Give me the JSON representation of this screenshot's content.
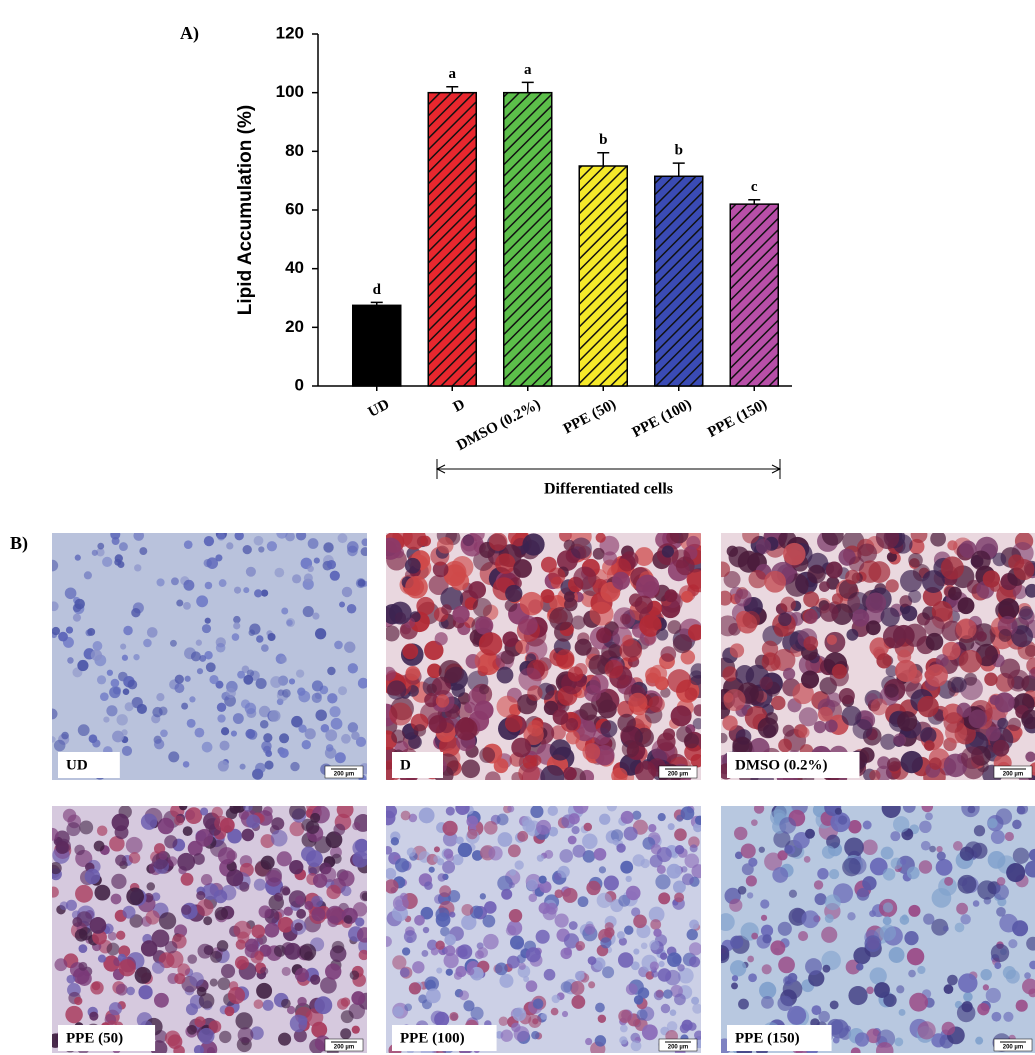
{
  "chart_data": {
    "type": "bar",
    "panel": "A)",
    "ylabel": "Lipid Accumulation (%)",
    "categories": [
      "UD",
      "D",
      "DMSO (0.2%)",
      "PPE (50)",
      "PPE (100)",
      "PPE (150)"
    ],
    "values": [
      27.5,
      100,
      100,
      75,
      71.5,
      62
    ],
    "errors": [
      1,
      2,
      3.5,
      4.5,
      4.5,
      1.5
    ],
    "significance_letters": [
      "d",
      "a",
      "a",
      "b",
      "b",
      "c"
    ],
    "colors": [
      "#000000",
      "#e8272e",
      "#5cbf4a",
      "#f5e92a",
      "#3a4bb5",
      "#b84fa8"
    ],
    "hatch": [
      false,
      true,
      true,
      true,
      true,
      true
    ],
    "ylim": [
      0,
      120
    ],
    "yticks": [
      0,
      20,
      40,
      60,
      80,
      100,
      120
    ],
    "group_bracket": {
      "label": "Differentiated cells"
    }
  },
  "panel_b": {
    "label": "B)",
    "images": [
      {
        "label": "UD",
        "scale": "200 µm"
      },
      {
        "label": "D",
        "scale": "200 µm"
      },
      {
        "label": "DMSO (0.2%)",
        "scale": "200 µm"
      },
      {
        "label": "PPE (50)",
        "scale": "200 µm"
      },
      {
        "label": "PPE (100)",
        "scale": "200 µm"
      },
      {
        "label": "PPE (150)",
        "scale": "200 µm"
      }
    ]
  }
}
